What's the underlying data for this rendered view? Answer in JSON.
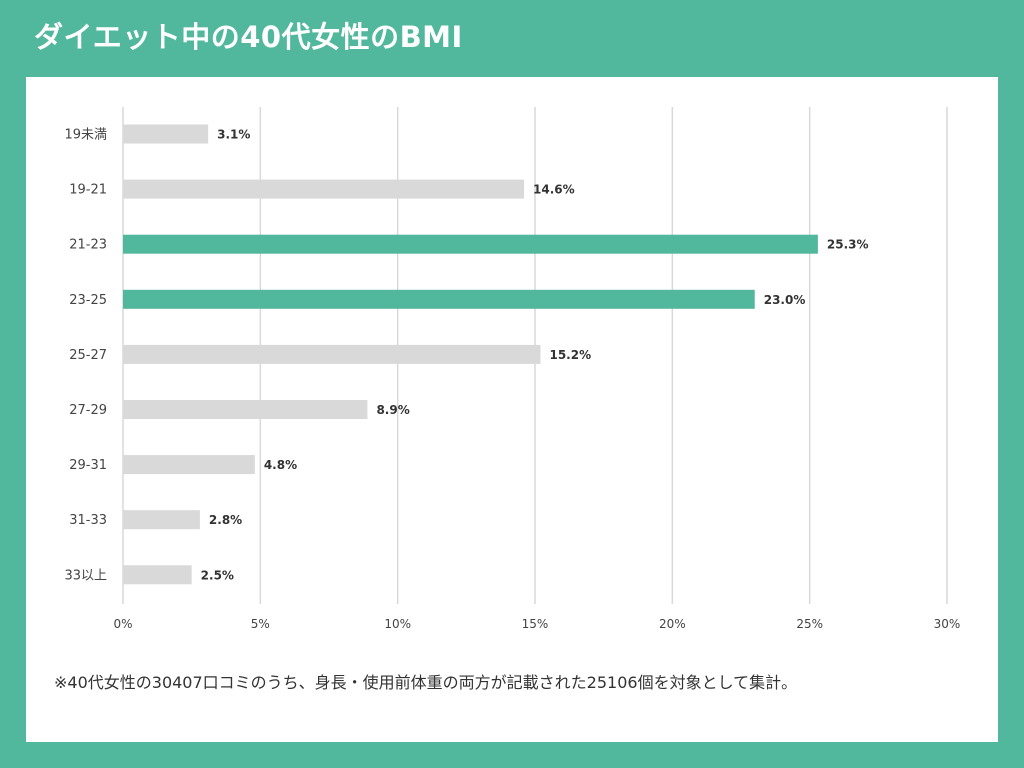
{
  "title": "ダイエット中の40代女性のBMI",
  "footnote": "※40代女性の30407口コミのうち、身長・使用前体重の両方が記載された25106個を対象として集計。",
  "colors": {
    "background": "#52b89d",
    "highlight": "#52b89d",
    "bar": "#d9d9d9",
    "grid": "#d9d9d9"
  },
  "chart_data": {
    "type": "bar",
    "orientation": "horizontal",
    "categories": [
      "19未満",
      "19-21",
      "21-23",
      "23-25",
      "25-27",
      "27-29",
      "29-31",
      "31-33",
      "33以上"
    ],
    "values": [
      3.1,
      14.6,
      25.3,
      23.0,
      15.2,
      8.9,
      4.8,
      2.8,
      2.5
    ],
    "data_labels": [
      "3.1%",
      "14.6%",
      "25.3%",
      "23.0%",
      "15.2%",
      "8.9%",
      "4.8%",
      "2.8%",
      "2.5%"
    ],
    "highlighted": [
      "21-23",
      "23-25"
    ],
    "xlim": [
      0,
      30
    ],
    "xticks": [
      0,
      5,
      10,
      15,
      20,
      25,
      30
    ],
    "xtick_labels": [
      "0%",
      "5%",
      "10%",
      "15%",
      "20%",
      "25%",
      "30%"
    ],
    "grid": true
  }
}
